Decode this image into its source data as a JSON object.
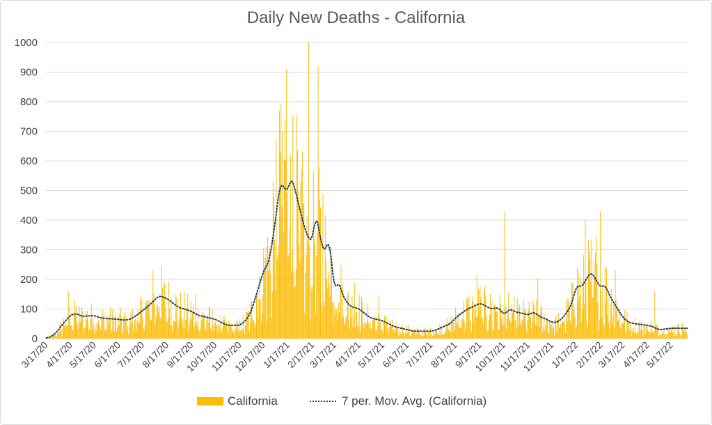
{
  "chart_data": {
    "type": "bar",
    "title": "Daily New Deaths - California",
    "xlabel": "",
    "ylabel": "",
    "ylim": [
      0,
      1000
    ],
    "yticks": [
      0,
      100,
      200,
      300,
      400,
      500,
      600,
      700,
      800,
      900,
      1000
    ],
    "grid": true,
    "legend_position": "bottom",
    "x_tick_labels": [
      "3/17/20",
      "4/17/20",
      "5/17/20",
      "6/17/20",
      "7/17/20",
      "8/17/20",
      "9/17/20",
      "10/17/20",
      "11/17/20",
      "12/17/20",
      "1/17/21",
      "2/17/21",
      "3/17/21",
      "4/17/21",
      "5/17/21",
      "6/17/21",
      "7/17/21",
      "8/17/21",
      "9/17/21",
      "10/17/21",
      "11/17/21",
      "12/17/21",
      "1/17/22",
      "2/17/22",
      "3/17/22",
      "4/17/22",
      "5/17/22"
    ],
    "x_start": "3/17/20",
    "x_end": "6/6/22",
    "series": [
      {
        "name": "California",
        "kind": "bar",
        "color": "#fbbd08",
        "anchors": [
          [
            "3/17/20",
            1
          ],
          [
            "3/24/20",
            8
          ],
          [
            "3/31/20",
            25
          ],
          [
            "4/7/20",
            50
          ],
          [
            "4/17/20",
            80
          ],
          [
            "4/24/20",
            85
          ],
          [
            "5/1/20",
            75
          ],
          [
            "5/17/20",
            78
          ],
          [
            "5/24/20",
            70
          ],
          [
            "6/1/20",
            68
          ],
          [
            "6/17/20",
            65
          ],
          [
            "6/24/20",
            62
          ],
          [
            "7/1/20",
            65
          ],
          [
            "7/10/20",
            80
          ],
          [
            "7/17/20",
            95
          ],
          [
            "7/24/20",
            110
          ],
          [
            "8/1/20",
            130
          ],
          [
            "8/7/20",
            145
          ],
          [
            "8/17/20",
            135
          ],
          [
            "8/24/20",
            120
          ],
          [
            "9/1/20",
            105
          ],
          [
            "9/17/20",
            92
          ],
          [
            "9/24/20",
            80
          ],
          [
            "10/1/20",
            75
          ],
          [
            "10/17/20",
            65
          ],
          [
            "10/24/20",
            55
          ],
          [
            "11/1/20",
            45
          ],
          [
            "11/17/20",
            45
          ],
          [
            "11/24/20",
            60
          ],
          [
            "12/1/20",
            90
          ],
          [
            "12/8/20",
            150
          ],
          [
            "12/17/20",
            230
          ],
          [
            "12/24/20",
            260
          ],
          [
            "12/31/20",
            380
          ],
          [
            "1/7/21",
            530
          ],
          [
            "1/14/21",
            500
          ],
          [
            "1/17/21",
            500
          ],
          [
            "1/21/21",
            550
          ],
          [
            "1/28/21",
            480
          ],
          [
            "2/4/21",
            400
          ],
          [
            "2/11/21",
            340
          ],
          [
            "2/17/21",
            330
          ],
          [
            "2/21/21",
            430
          ],
          [
            "2/28/21",
            320
          ],
          [
            "3/4/21",
            290
          ],
          [
            "3/10/21",
            340
          ],
          [
            "3/17/21",
            150
          ],
          [
            "3/21/21",
            200
          ],
          [
            "3/28/21",
            140
          ],
          [
            "4/5/21",
            110
          ],
          [
            "4/17/21",
            100
          ],
          [
            "4/24/21",
            85
          ],
          [
            "5/1/21",
            70
          ],
          [
            "5/17/21",
            60
          ],
          [
            "5/24/21",
            50
          ],
          [
            "6/1/21",
            40
          ],
          [
            "6/17/21",
            30
          ],
          [
            "6/24/21",
            25
          ],
          [
            "7/1/21",
            25
          ],
          [
            "7/17/21",
            25
          ],
          [
            "7/24/21",
            30
          ],
          [
            "8/1/21",
            40
          ],
          [
            "8/10/21",
            50
          ],
          [
            "8/17/21",
            70
          ],
          [
            "8/24/21",
            85
          ],
          [
            "9/1/21",
            100
          ],
          [
            "9/10/21",
            110
          ],
          [
            "9/17/21",
            120
          ],
          [
            "9/24/21",
            110
          ],
          [
            "10/1/21",
            100
          ],
          [
            "10/10/21",
            105
          ],
          [
            "10/17/21",
            80
          ],
          [
            "10/24/21",
            100
          ],
          [
            "11/1/21",
            90
          ],
          [
            "11/10/21",
            85
          ],
          [
            "11/17/21",
            80
          ],
          [
            "11/24/21",
            90
          ],
          [
            "12/1/21",
            75
          ],
          [
            "12/10/21",
            65
          ],
          [
            "12/17/21",
            55
          ],
          [
            "12/24/21",
            55
          ],
          [
            "1/1/22",
            75
          ],
          [
            "1/10/22",
            110
          ],
          [
            "1/17/22",
            180
          ],
          [
            "1/24/22",
            175
          ],
          [
            "1/31/22",
            210
          ],
          [
            "2/5/22",
            225
          ],
          [
            "2/10/22",
            200
          ],
          [
            "2/17/22",
            170
          ],
          [
            "2/21/22",
            185
          ],
          [
            "3/1/22",
            140
          ],
          [
            "3/10/22",
            100
          ],
          [
            "3/17/22",
            70
          ],
          [
            "3/24/22",
            55
          ],
          [
            "4/1/22",
            50
          ],
          [
            "4/17/22",
            45
          ],
          [
            "4/24/22",
            40
          ],
          [
            "5/1/22",
            30
          ],
          [
            "5/17/22",
            35
          ],
          [
            "5/24/22",
            35
          ],
          [
            "6/6/22",
            35
          ]
        ],
        "peaks": [
          [
            "4/14/20",
            160
          ],
          [
            "7/30/20",
            230
          ],
          [
            "8/10/20",
            245
          ],
          [
            "9/22/20",
            150
          ],
          [
            "12/20/20",
            310
          ],
          [
            "12/29/20",
            530
          ],
          [
            "1/6/21",
            770
          ],
          [
            "1/10/21",
            700
          ],
          [
            "1/13/21",
            740
          ],
          [
            "1/15/21",
            910
          ],
          [
            "1/20/21",
            620
          ],
          [
            "2/12/21",
            1000
          ],
          [
            "2/24/21",
            920
          ],
          [
            "3/2/21",
            490
          ],
          [
            "4/11/21",
            190
          ],
          [
            "5/12/21",
            145
          ],
          [
            "9/13/21",
            215
          ],
          [
            "10/18/21",
            430
          ],
          [
            "11/29/21",
            205
          ],
          [
            "1/28/22",
            400
          ],
          [
            "2/11/22",
            345
          ],
          [
            "2/16/22",
            430
          ],
          [
            "3/7/22",
            230
          ],
          [
            "4/26/22",
            160
          ]
        ]
      },
      {
        "name": "7 per. Mov. Avg. (California)",
        "kind": "line",
        "style": "dotted",
        "color": "#1f3864",
        "window": 7
      }
    ]
  },
  "legend": {
    "bar_label": "California",
    "line_label": "7 per. Mov. Avg. (California)"
  }
}
